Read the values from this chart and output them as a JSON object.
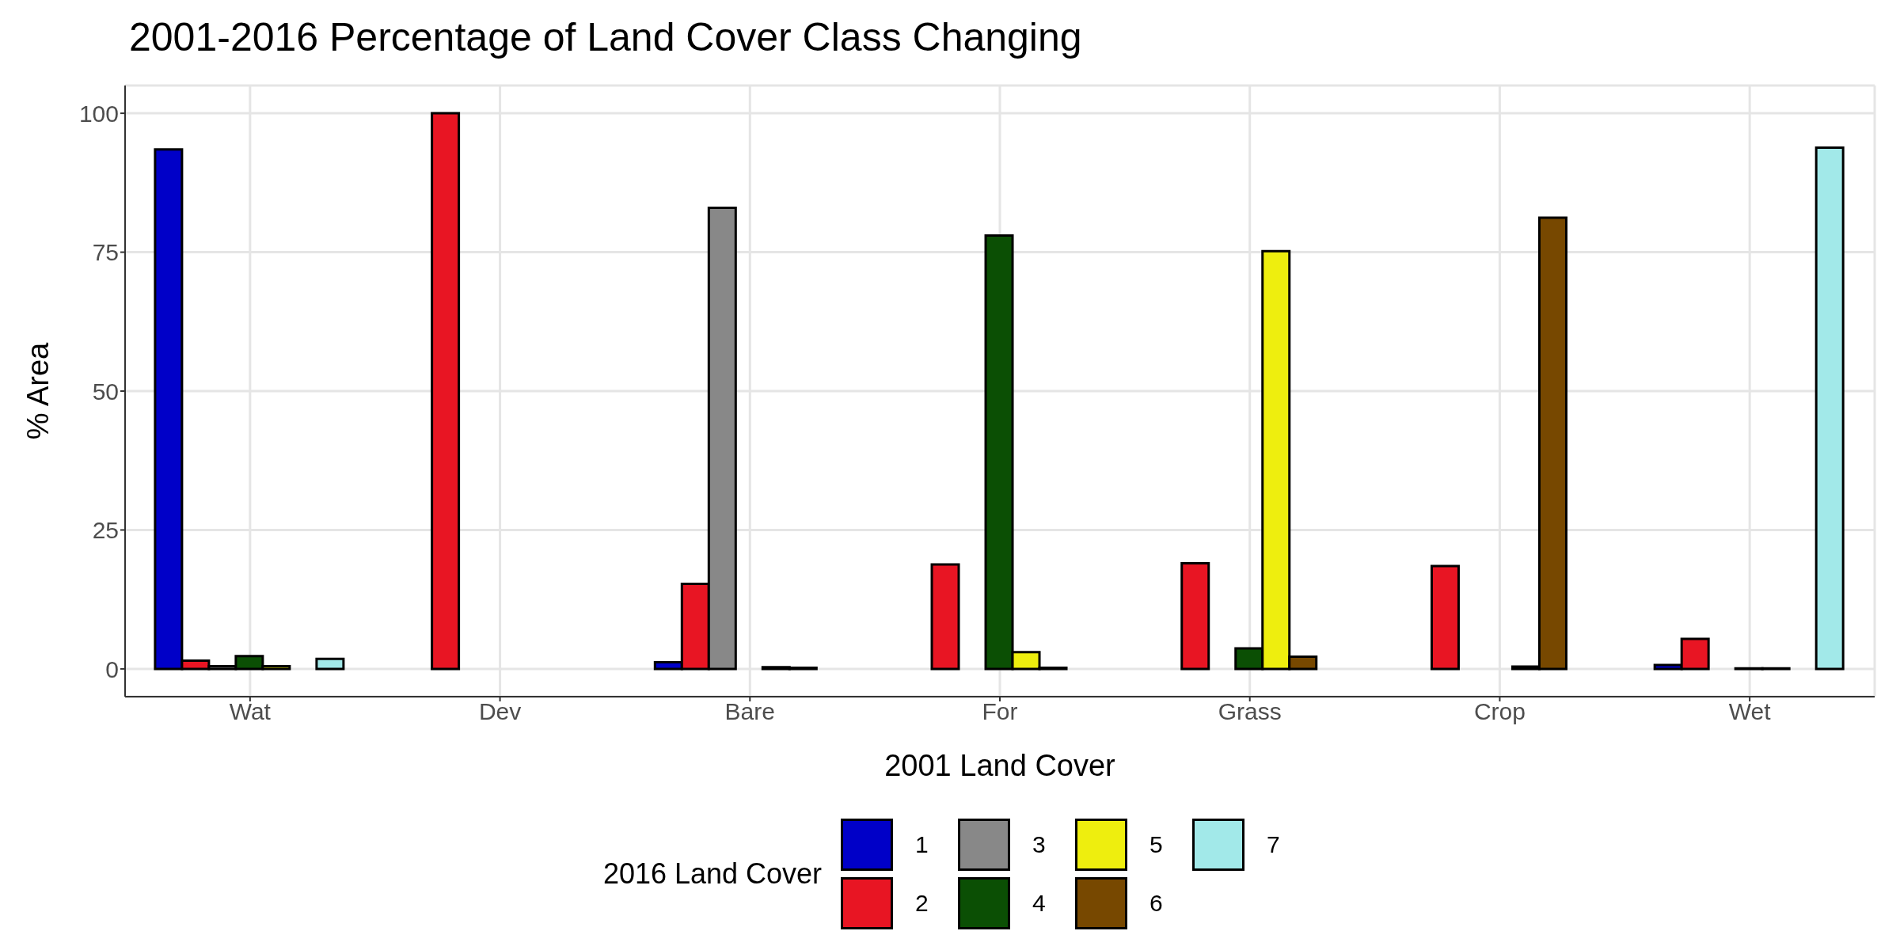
{
  "chart_data": {
    "type": "bar",
    "title": "2001-2016 Percentage of Land Cover Class Changing",
    "xlabel": "2001 Land Cover",
    "ylabel": "% Area",
    "legend_title": "2016 Land Cover",
    "categories": [
      "Wat",
      "Dev",
      "Bare",
      "For",
      "Grass",
      "Crop",
      "Wet"
    ],
    "series": [
      {
        "name": "1",
        "color": "#0000c8",
        "values": [
          93.5,
          0,
          1.2,
          0,
          0,
          0,
          0.7
        ]
      },
      {
        "name": "2",
        "color": "#e81523",
        "values": [
          1.5,
          100,
          15.3,
          18.8,
          19,
          18.5,
          5.4
        ]
      },
      {
        "name": "3",
        "color": "#888888",
        "values": [
          0.5,
          0,
          83,
          0,
          0,
          0,
          0
        ]
      },
      {
        "name": "4",
        "color": "#0b4f04",
        "values": [
          2.3,
          0,
          0,
          78,
          3.7,
          0,
          0.1
        ]
      },
      {
        "name": "5",
        "color": "#eeee0e",
        "values": [
          0.5,
          0,
          0.3,
          3,
          75.2,
          0.4,
          0.1
        ]
      },
      {
        "name": "6",
        "color": "#774800",
        "values": [
          0,
          0,
          0.2,
          0.2,
          2.2,
          81.2,
          0
        ]
      },
      {
        "name": "7",
        "color": "#a2e9e9",
        "values": [
          1.8,
          0,
          0,
          0,
          0,
          0,
          93.8
        ]
      }
    ],
    "ylim": [
      -5,
      105
    ],
    "yticks": [
      0,
      25,
      50,
      75,
      100
    ],
    "grid": true,
    "legend": "bottom"
  }
}
